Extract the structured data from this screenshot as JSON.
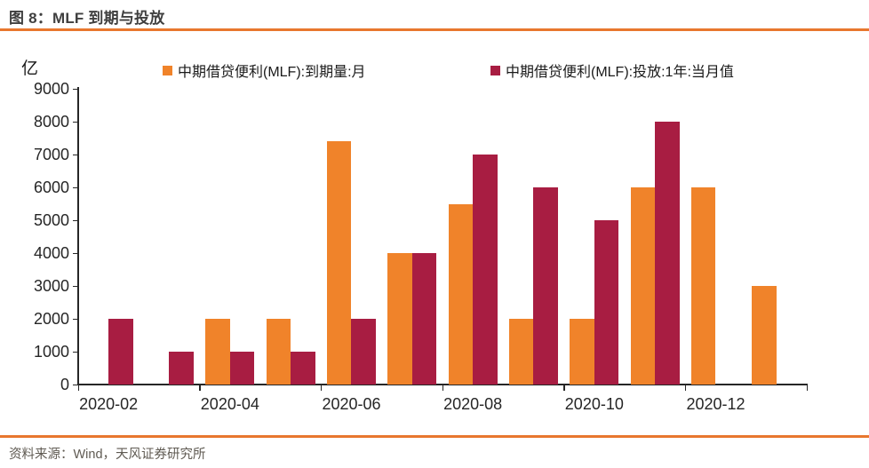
{
  "figure": {
    "title": "图 8：MLF 到期与投放",
    "unit_label": "亿",
    "source": "资料来源：Wind，天风证券研究所"
  },
  "colors": {
    "accent_orange": "#e8772e",
    "bar_maturity_orange": "#f0832a",
    "bar_injection_red": "#a81d42",
    "axis_text": "#262626",
    "title_text": "#3f3f3f",
    "source_text": "#5f5a52"
  },
  "chart_data": {
    "type": "bar",
    "title": "MLF 到期与投放",
    "unit": "亿",
    "categories": [
      "2020-02",
      "2020-03",
      "2020-04",
      "2020-05",
      "2020-06",
      "2020-07",
      "2020-08",
      "2020-09",
      "2020-10",
      "2020-11",
      "2020-12",
      "2021-01"
    ],
    "x_tick_labels": [
      "2020-02",
      "2020-04",
      "2020-06",
      "2020-08",
      "2020-10",
      "2020-12"
    ],
    "series": [
      {
        "name": "中期借贷便利(MLF):到期量:月",
        "color": "#f0832a",
        "values": [
          null,
          null,
          2000,
          2000,
          7400,
          4000,
          5500,
          2000,
          2000,
          6000,
          6000,
          3000
        ]
      },
      {
        "name": "中期借贷便利(MLF):投放:1年:当月值",
        "color": "#a81d42",
        "values": [
          2000,
          1000,
          1000,
          1000,
          2000,
          4000,
          7000,
          6000,
          5000,
          8000,
          null,
          null
        ]
      }
    ],
    "ylim": [
      0,
      9000
    ],
    "y_tick_interval": 1000,
    "grid": "off",
    "legend_position": "top"
  }
}
